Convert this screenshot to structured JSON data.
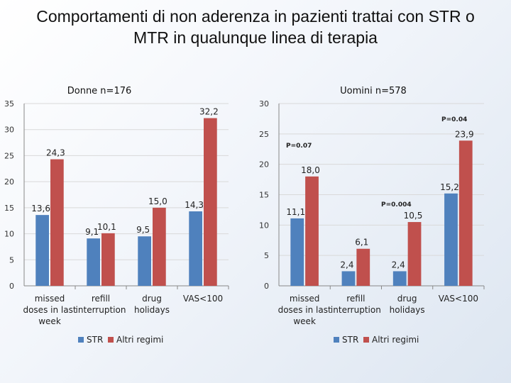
{
  "slide": {
    "title_line1": "Comportamenti di non aderenza in pazienti trattai con STR o",
    "title_line2": "MTR in qualunque linea di terapia"
  },
  "colors": {
    "series1": "#4f81bd",
    "series2": "#c0504d",
    "axis": "#888888",
    "grid": "#d9d9d9"
  },
  "chart_data": [
    {
      "type": "bar",
      "title": "Donne n=176",
      "categories": [
        [
          "missed",
          "doses in last",
          "week"
        ],
        [
          "refill",
          "interruption"
        ],
        [
          "drug",
          "holidays"
        ],
        [
          "VAS<100"
        ]
      ],
      "series": [
        {
          "name": "STR",
          "values": [
            13.6,
            9.1,
            9.5,
            14.3
          ],
          "labels": [
            "13,6",
            "9,1",
            "9,5",
            "14,3"
          ]
        },
        {
          "name": "Altri regimi",
          "values": [
            24.3,
            10.1,
            15.0,
            32.2
          ],
          "labels": [
            "24,3",
            "10,1",
            "15,0",
            "32,2"
          ]
        }
      ],
      "yticks": [
        0,
        5,
        10,
        15,
        20,
        25,
        30,
        35
      ],
      "ylim": [
        0,
        35
      ],
      "annotations": [],
      "legend": "bottom"
    },
    {
      "type": "bar",
      "title": "Uomini n=578",
      "categories": [
        [
          "missed",
          "doses in last",
          "week"
        ],
        [
          "refill",
          "interruption"
        ],
        [
          "drug",
          "holidays"
        ],
        [
          "VAS<100"
        ]
      ],
      "series": [
        {
          "name": "STR",
          "values": [
            11.1,
            2.4,
            2.4,
            15.2
          ],
          "labels": [
            "11,1",
            "2,4",
            "2,4",
            "15,2"
          ]
        },
        {
          "name": "Altri regimi",
          "values": [
            18.0,
            6.1,
            10.5,
            23.9
          ],
          "labels": [
            "18,0",
            "6,1",
            "10,5",
            "23,9"
          ]
        }
      ],
      "yticks": [
        0,
        5,
        10,
        15,
        20,
        25,
        30
      ],
      "ylim": [
        0,
        30
      ],
      "annotations": [
        "P=0.07",
        "P=0.004",
        "P=0.04"
      ],
      "legend": "bottom"
    }
  ]
}
